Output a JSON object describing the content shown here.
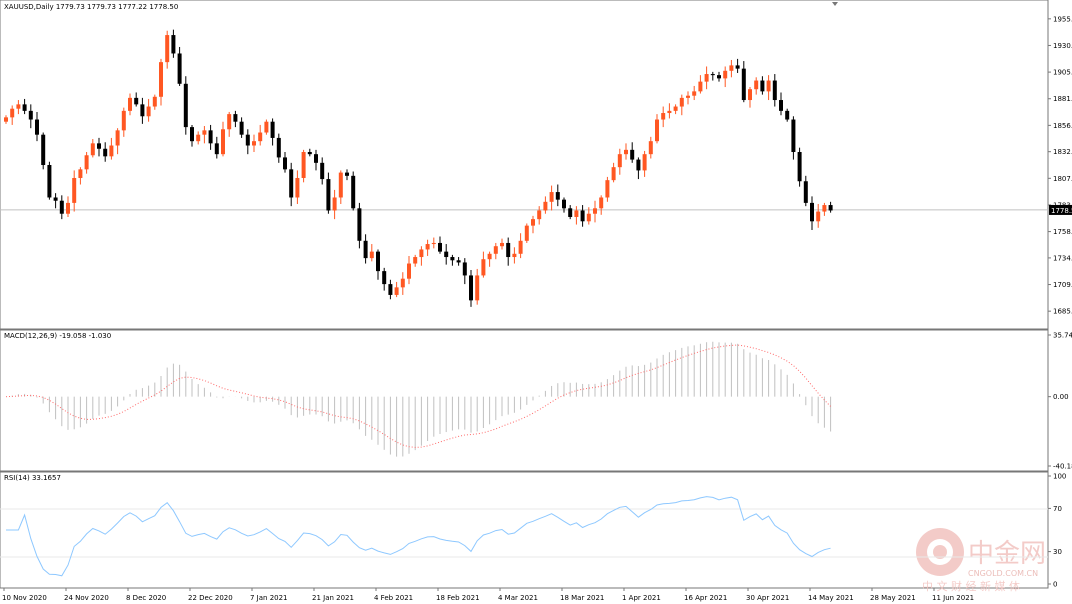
{
  "header": {
    "symbol_line": "XAUUSD,Daily  1779.73 1779.73 1777.22 1778.50"
  },
  "price_panel": {
    "y_ticks": [
      "1955.00",
      "1930.40",
      "1905.80",
      "1881.20",
      "1856.60",
      "1832.30",
      "1807.70",
      "1783.10",
      "1758.50",
      "1734.20",
      "1709.60",
      "1685.00"
    ],
    "current_price": "1778.50"
  },
  "macd_panel": {
    "label": "MACD(12,26,9) -19.058 -1.030",
    "y_ticks": [
      "35.741",
      "0.00",
      "-40.186"
    ]
  },
  "rsi_panel": {
    "label": "RSI(14) 33.1657",
    "y_ticks": [
      "100",
      "70",
      "30",
      "0"
    ]
  },
  "x_axis": {
    "labels": [
      "10 Nov 2020",
      "24 Nov 2020",
      "8 Dec 2020",
      "22 Dec 2020",
      "7 Jan 2021",
      "21 Jan 2021",
      "4 Feb 2021",
      "18 Feb 2021",
      "4 Mar 2021",
      "18 Mar 2021",
      "1 Apr 2021",
      "16 Apr 2021",
      "30 Apr 2021",
      "14 May 2021",
      "28 May 2021",
      "11 Jun 2021"
    ]
  },
  "watermark": {
    "brand": "中金网",
    "site": "CNGOLD.COM.CN",
    "slogan": "中 文 财 经 新 媒 体"
  },
  "colors": {
    "bull": "#ff5722",
    "bear": "#000000",
    "macd_hist": "#c0c0c0",
    "macd_signal": "#ff6b6b",
    "rsi_line": "#8ec8ff",
    "price_line": "#c0c0c0",
    "watermark_red": "#f2c3bf"
  },
  "chart_data": {
    "type": "candlestick",
    "symbol": "XAUUSD",
    "timeframe": "Daily",
    "last_bar": {
      "open": 1779.73,
      "high": 1779.73,
      "low": 1777.22,
      "close": 1778.5
    },
    "close_series": [
      1864,
      1872,
      1876,
      1870,
      1862,
      1848,
      1820,
      1790,
      1787,
      1775,
      1785,
      1808,
      1816,
      1829,
      1840,
      1835,
      1828,
      1838,
      1852,
      1870,
      1882,
      1876,
      1865,
      1874,
      1883,
      1915,
      1940,
      1923,
      1895,
      1855,
      1842,
      1848,
      1852,
      1840,
      1830,
      1853,
      1867,
      1860,
      1848,
      1838,
      1842,
      1850,
      1860,
      1845,
      1827,
      1816,
      1790,
      1808,
      1832,
      1830,
      1822,
      1807,
      1778,
      1790,
      1813,
      1810,
      1780,
      1750,
      1734,
      1740,
      1722,
      1710,
      1700,
      1707,
      1715,
      1729,
      1735,
      1742,
      1747,
      1748,
      1740,
      1735,
      1732,
      1730,
      1718,
      1695,
      1718,
      1733,
      1738,
      1745,
      1748,
      1735,
      1738,
      1750,
      1764,
      1770,
      1778,
      1786,
      1795,
      1788,
      1780,
      1772,
      1778,
      1768,
      1775,
      1780,
      1790,
      1806,
      1818,
      1830,
      1834,
      1825,
      1815,
      1830,
      1842,
      1862,
      1868,
      1870,
      1874,
      1882,
      1884,
      1888,
      1897,
      1904,
      1903,
      1900,
      1907,
      1912,
      1909,
      1880,
      1890,
      1898,
      1888,
      1898,
      1880,
      1870,
      1862,
      1832,
      1805,
      1785,
      1768,
      1777,
      1783,
      1778
    ],
    "macd": {
      "value": -19.058,
      "signal": -1.03,
      "params": [
        12,
        26,
        9
      ],
      "ylim": [
        -40.186,
        35.741
      ]
    },
    "rsi": {
      "value": 33.1657,
      "period": 14,
      "levels": [
        70,
        30
      ],
      "ylim": [
        0,
        100
      ]
    },
    "price_ylim": [
      1675,
      1965
    ]
  }
}
